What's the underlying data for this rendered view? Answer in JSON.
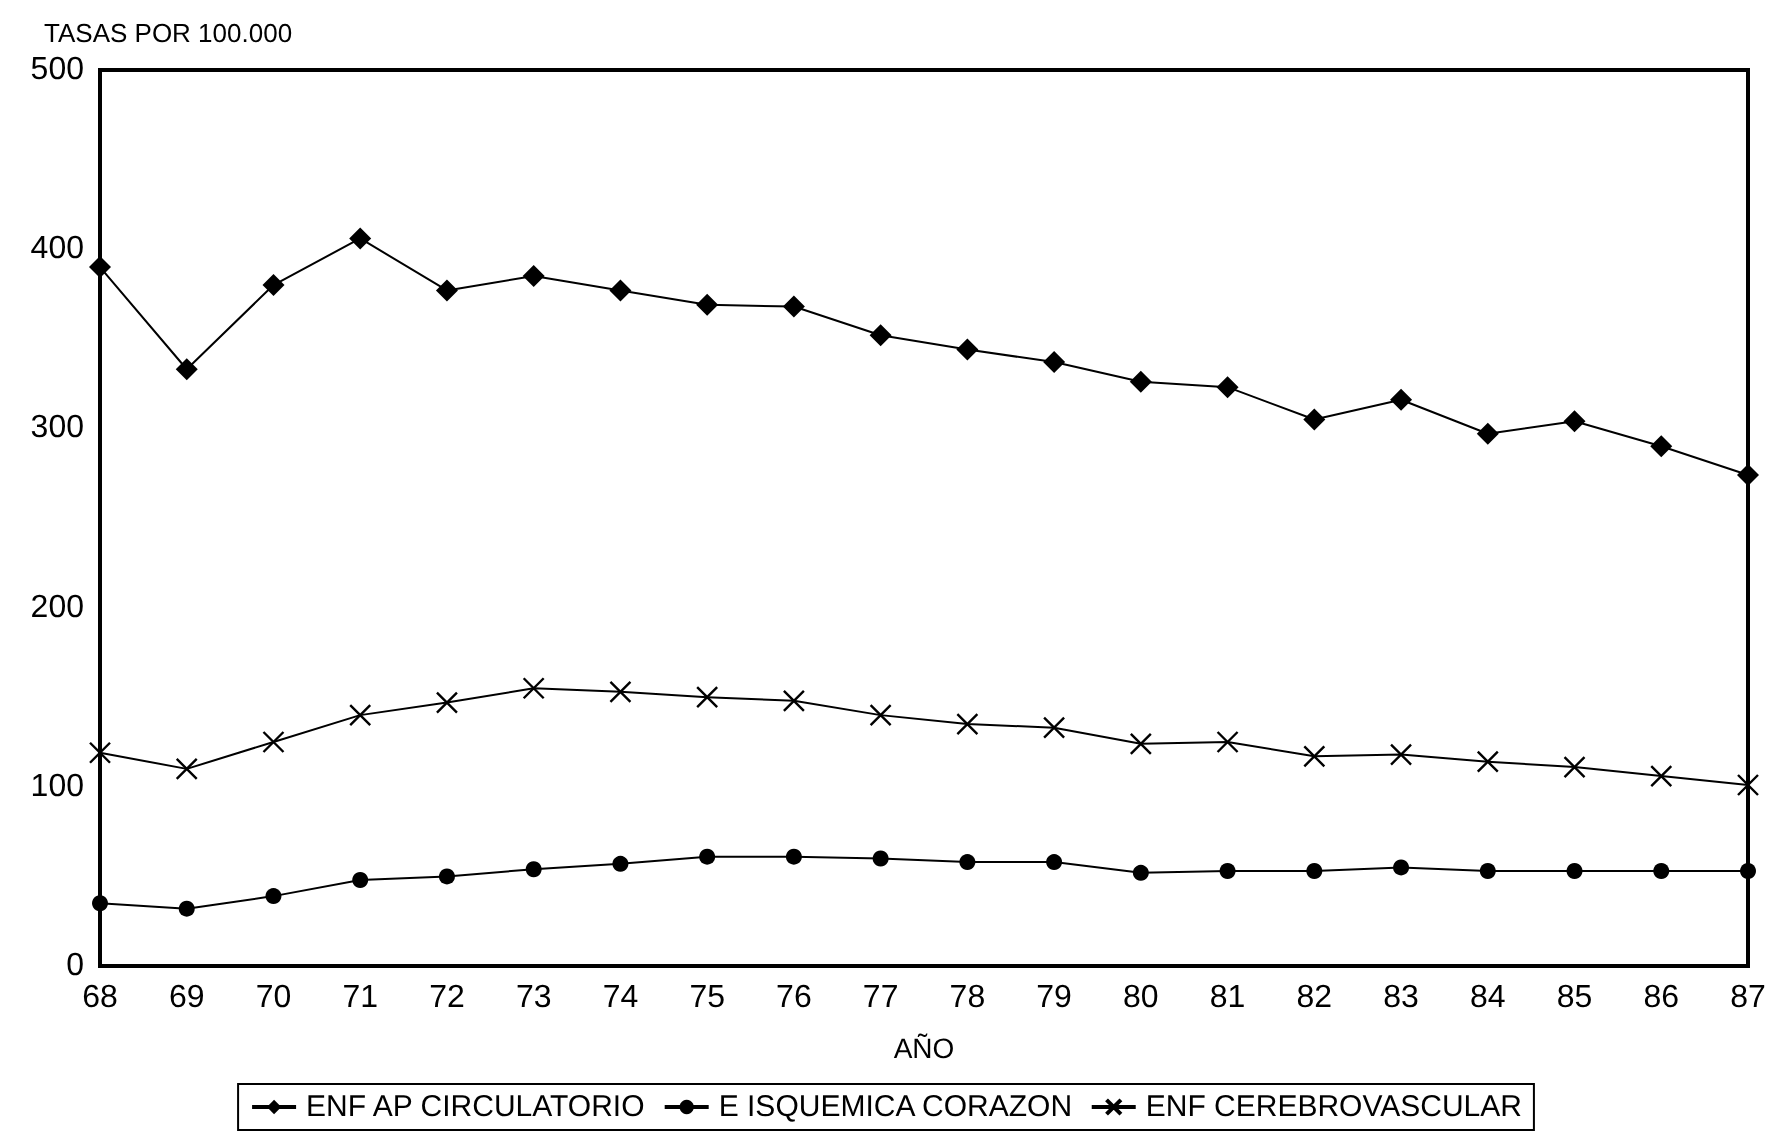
{
  "chart_data": {
    "type": "line",
    "xlabel": "AÑO",
    "ylabel": "TASAS POR 100.000",
    "categories": [
      "68",
      "69",
      "70",
      "71",
      "72",
      "73",
      "74",
      "75",
      "76",
      "77",
      "78",
      "79",
      "80",
      "81",
      "82",
      "83",
      "84",
      "85",
      "86",
      "87"
    ],
    "ylim": [
      0,
      500
    ],
    "yticks": [
      0,
      100,
      200,
      300,
      400,
      500
    ],
    "grid": false,
    "legend": "bottom",
    "line_style": "solid",
    "series": [
      {
        "name": "ENF AP CIRCULATORIO",
        "color": "#000000",
        "marker": "diamond",
        "values": [
          390,
          333,
          380,
          406,
          377,
          385,
          377,
          369,
          368,
          352,
          344,
          337,
          326,
          323,
          305,
          316,
          297,
          304,
          290,
          274
        ]
      },
      {
        "name": "E ISQUEMICA CORAZON",
        "color": "#000000",
        "marker": "circle",
        "values": [
          35,
          32,
          39,
          48,
          50,
          54,
          57,
          61,
          61,
          60,
          58,
          58,
          52,
          53,
          53,
          55,
          53,
          53,
          53,
          53
        ]
      },
      {
        "name": "ENF CEREBROVASCULAR",
        "color": "#000000",
        "marker": "cross",
        "values": [
          119,
          110,
          125,
          140,
          147,
          155,
          153,
          150,
          148,
          140,
          135,
          133,
          124,
          125,
          117,
          118,
          114,
          111,
          106,
          101
        ]
      }
    ]
  }
}
